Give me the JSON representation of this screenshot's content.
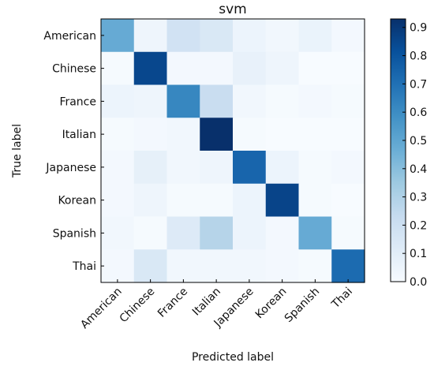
{
  "chart_data": {
    "type": "heatmap",
    "title": "svm",
    "xlabel": "Predicted label",
    "ylabel": "True label",
    "x_categories": [
      "American",
      "Chinese",
      "France",
      "Italian",
      "Japanese",
      "Korean",
      "Spanish",
      "Thai"
    ],
    "y_categories": [
      "American",
      "Chinese",
      "France",
      "Italian",
      "Japanese",
      "Korean",
      "Spanish",
      "Thai"
    ],
    "values": [
      [
        0.48,
        0.04,
        0.18,
        0.14,
        0.05,
        0.03,
        0.06,
        0.02
      ],
      [
        0.01,
        0.85,
        0.02,
        0.02,
        0.07,
        0.04,
        0.0,
        0.0
      ],
      [
        0.05,
        0.04,
        0.62,
        0.22,
        0.03,
        0.01,
        0.02,
        0.01
      ],
      [
        0.01,
        0.02,
        0.03,
        0.93,
        0.01,
        0.0,
        0.0,
        0.0
      ],
      [
        0.02,
        0.08,
        0.03,
        0.04,
        0.74,
        0.05,
        0.01,
        0.02
      ],
      [
        0.02,
        0.04,
        0.01,
        0.01,
        0.05,
        0.86,
        0.01,
        0.0
      ],
      [
        0.03,
        0.01,
        0.12,
        0.28,
        0.05,
        0.02,
        0.48,
        0.01
      ],
      [
        0.02,
        0.14,
        0.03,
        0.03,
        0.03,
        0.02,
        0.01,
        0.72
      ]
    ],
    "colorbar": {
      "min": 0.0,
      "max": 0.93,
      "ticks": [
        "0.0",
        "0.1",
        "0.2",
        "0.3",
        "0.4",
        "0.5",
        "0.6",
        "0.7",
        "0.8",
        "0.9"
      ],
      "colormap": "Blues",
      "stops": [
        "#f7fbff",
        "#deebf7",
        "#c6dbef",
        "#9ecae1",
        "#6baed6",
        "#4292c6",
        "#2171b5",
        "#08519c",
        "#08306b"
      ]
    },
    "grid": false,
    "legend": "colorbar-right"
  }
}
